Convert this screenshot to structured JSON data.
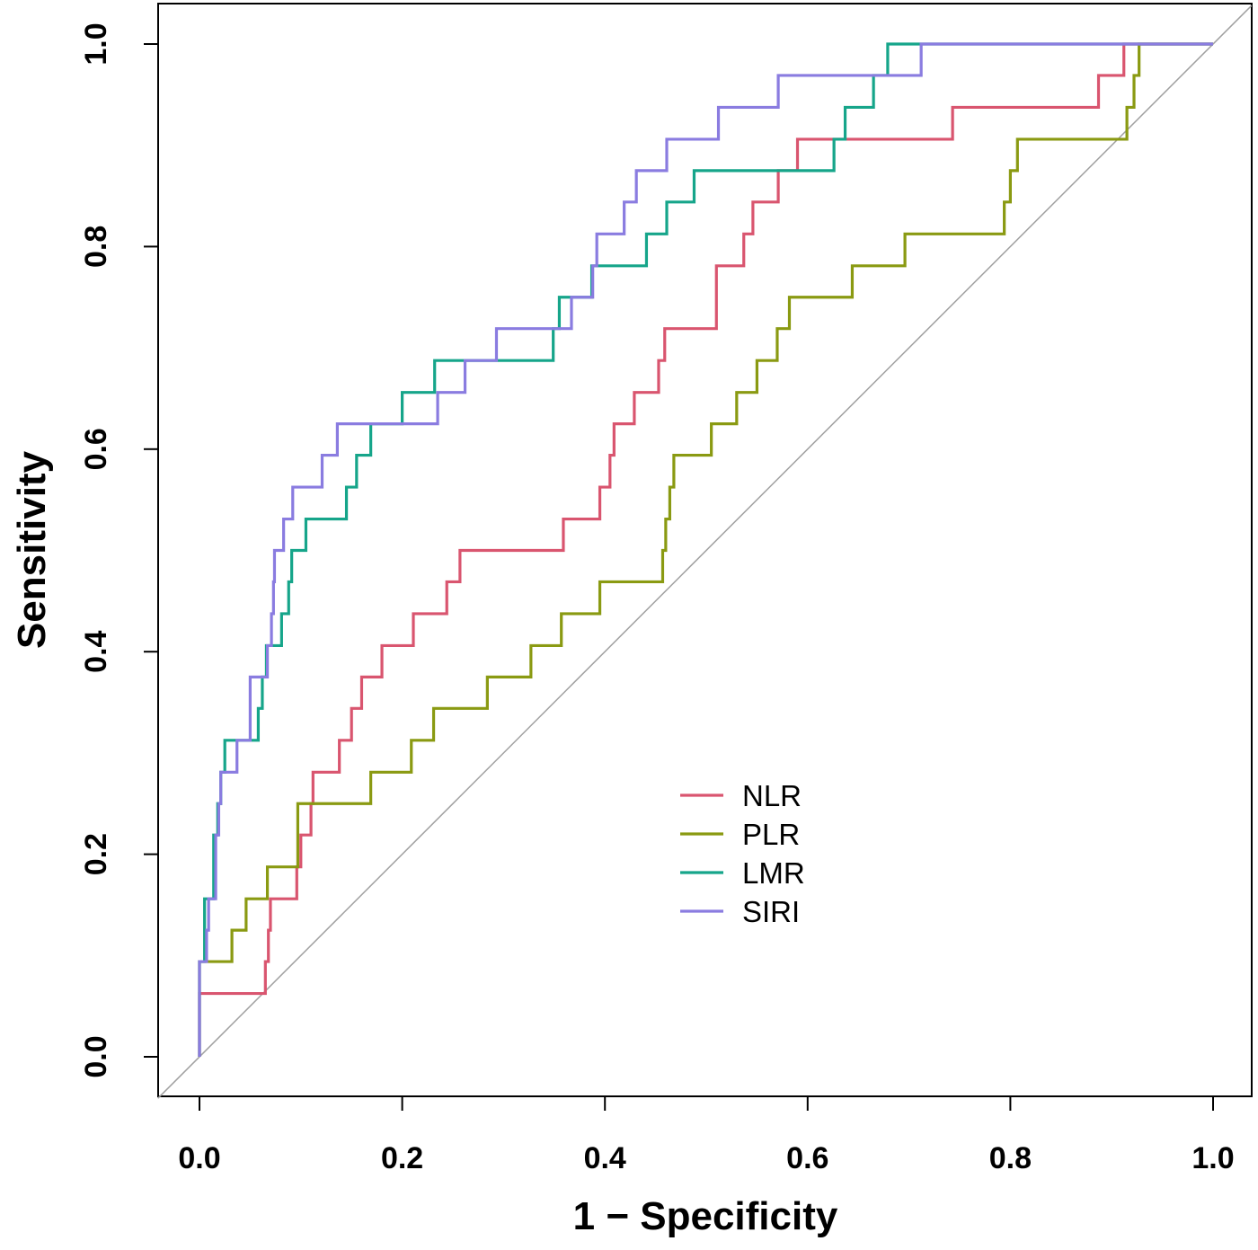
{
  "chart_data": {
    "type": "line",
    "title": "",
    "xlabel": "1 − Specificity",
    "ylabel": "Sensitivity",
    "xlim": [
      0,
      1
    ],
    "ylim": [
      0,
      1
    ],
    "xticks": [
      "0.0",
      "0.2",
      "0.4",
      "0.6",
      "0.8",
      "1.0"
    ],
    "yticks": [
      "0.0",
      "0.2",
      "0.4",
      "0.6",
      "0.8",
      "1.0"
    ],
    "grid": false,
    "legend_position": "center-bottom",
    "reference_line": {
      "from": [
        0,
        0
      ],
      "to": [
        1,
        1
      ],
      "color": "#a0a0a0"
    },
    "series": [
      {
        "name": "NLR",
        "color": "#d9556f",
        "points": [
          [
            0,
            0
          ],
          [
            0,
            0.0625
          ],
          [
            0.065,
            0.094
          ],
          [
            0.068,
            0.125
          ],
          [
            0.07,
            0.156
          ],
          [
            0.085,
            0.156
          ],
          [
            0.096,
            0.1875
          ],
          [
            0.1,
            0.219
          ],
          [
            0.11,
            0.25
          ],
          [
            0.112,
            0.281
          ],
          [
            0.138,
            0.3125
          ],
          [
            0.15,
            0.344
          ],
          [
            0.16,
            0.375
          ],
          [
            0.18,
            0.406
          ],
          [
            0.211,
            0.4375
          ],
          [
            0.244,
            0.469
          ],
          [
            0.257,
            0.5
          ],
          [
            0.359,
            0.531
          ],
          [
            0.395,
            0.5625
          ],
          [
            0.405,
            0.594
          ],
          [
            0.409,
            0.625
          ],
          [
            0.429,
            0.656
          ],
          [
            0.453,
            0.6875
          ],
          [
            0.459,
            0.719
          ],
          [
            0.51,
            0.781
          ],
          [
            0.537,
            0.8125
          ],
          [
            0.546,
            0.844
          ],
          [
            0.571,
            0.875
          ],
          [
            0.59,
            0.906
          ],
          [
            0.743,
            0.9375
          ],
          [
            0.887,
            0.969
          ],
          [
            0.912,
            1.0
          ],
          [
            1,
            1
          ]
        ]
      },
      {
        "name": "PLR",
        "color": "#8a9a12",
        "points": [
          [
            0,
            0
          ],
          [
            0,
            0.094
          ],
          [
            0.032,
            0.125
          ],
          [
            0.046,
            0.156
          ],
          [
            0.067,
            0.1875
          ],
          [
            0.097,
            0.25
          ],
          [
            0.169,
            0.281
          ],
          [
            0.209,
            0.3125
          ],
          [
            0.231,
            0.344
          ],
          [
            0.284,
            0.375
          ],
          [
            0.327,
            0.406
          ],
          [
            0.357,
            0.4375
          ],
          [
            0.395,
            0.469
          ],
          [
            0.457,
            0.5
          ],
          [
            0.46,
            0.531
          ],
          [
            0.464,
            0.5625
          ],
          [
            0.468,
            0.594
          ],
          [
            0.505,
            0.625
          ],
          [
            0.53,
            0.656
          ],
          [
            0.55,
            0.6875
          ],
          [
            0.57,
            0.719
          ],
          [
            0.582,
            0.75
          ],
          [
            0.644,
            0.781
          ],
          [
            0.696,
            0.8125
          ],
          [
            0.794,
            0.844
          ],
          [
            0.8,
            0.875
          ],
          [
            0.807,
            0.906
          ],
          [
            0.911,
            0.906
          ],
          [
            0.915,
            0.9375
          ],
          [
            0.922,
            0.969
          ],
          [
            0.927,
            1.0
          ],
          [
            1,
            1
          ]
        ]
      },
      {
        "name": "LMR",
        "color": "#16a58a",
        "points": [
          [
            0,
            0
          ],
          [
            0,
            0.094
          ],
          [
            0.005,
            0.156
          ],
          [
            0.014,
            0.219
          ],
          [
            0.018,
            0.25
          ],
          [
            0.021,
            0.281
          ],
          [
            0.025,
            0.3125
          ],
          [
            0.058,
            0.344
          ],
          [
            0.062,
            0.375
          ],
          [
            0.066,
            0.406
          ],
          [
            0.078,
            0.406
          ],
          [
            0.081,
            0.4375
          ],
          [
            0.088,
            0.469
          ],
          [
            0.091,
            0.5
          ],
          [
            0.105,
            0.531
          ],
          [
            0.145,
            0.5625
          ],
          [
            0.155,
            0.594
          ],
          [
            0.169,
            0.625
          ],
          [
            0.2,
            0.656
          ],
          [
            0.232,
            0.6875
          ],
          [
            0.349,
            0.719
          ],
          [
            0.355,
            0.75
          ],
          [
            0.387,
            0.781
          ],
          [
            0.441,
            0.8125
          ],
          [
            0.461,
            0.844
          ],
          [
            0.488,
            0.875
          ],
          [
            0.626,
            0.906
          ],
          [
            0.637,
            0.9375
          ],
          [
            0.665,
            0.969
          ],
          [
            0.679,
            1.0
          ],
          [
            1,
            1
          ]
        ]
      },
      {
        "name": "SIRI",
        "color": "#8a7ce0",
        "points": [
          [
            0,
            0
          ],
          [
            0,
            0.094
          ],
          [
            0.007,
            0.125
          ],
          [
            0.009,
            0.156
          ],
          [
            0.016,
            0.219
          ],
          [
            0.019,
            0.25
          ],
          [
            0.021,
            0.281
          ],
          [
            0.037,
            0.3125
          ],
          [
            0.05,
            0.375
          ],
          [
            0.067,
            0.406
          ],
          [
            0.071,
            0.4375
          ],
          [
            0.073,
            0.469
          ],
          [
            0.074,
            0.5
          ],
          [
            0.083,
            0.531
          ],
          [
            0.092,
            0.5625
          ],
          [
            0.121,
            0.594
          ],
          [
            0.136,
            0.625
          ],
          [
            0.235,
            0.656
          ],
          [
            0.262,
            0.6875
          ],
          [
            0.293,
            0.719
          ],
          [
            0.367,
            0.75
          ],
          [
            0.388,
            0.781
          ],
          [
            0.392,
            0.8125
          ],
          [
            0.419,
            0.844
          ],
          [
            0.431,
            0.875
          ],
          [
            0.461,
            0.906
          ],
          [
            0.512,
            0.9375
          ],
          [
            0.571,
            0.969
          ],
          [
            0.712,
            1.0
          ],
          [
            1,
            1
          ]
        ]
      }
    ]
  }
}
